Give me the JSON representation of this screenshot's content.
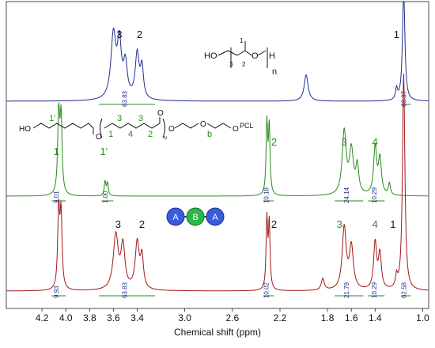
{
  "chart_data": {
    "type": "line",
    "xlabel": "Chemical shift (ppm)",
    "xlim": [
      4.5,
      0.95
    ],
    "x_ticks": [
      "4.2",
      "4.0",
      "3.8",
      "3.6",
      "3.4",
      "3.0",
      "2.6",
      "2.2",
      "1.8",
      "1.6",
      "1.4",
      "1.0"
    ],
    "grid": false,
    "series": [
      {
        "color": "#1f2f8f",
        "peaks": [
          {
            "x": 3.6,
            "height": 0.85,
            "width": 0.025
          },
          {
            "x": 3.55,
            "height": 0.7,
            "width": 0.02
          },
          {
            "x": 3.5,
            "height": 0.45,
            "width": 0.02
          },
          {
            "x": 3.4,
            "height": 0.6,
            "width": 0.02
          },
          {
            "x": 3.36,
            "height": 0.4,
            "width": 0.015
          },
          {
            "x": 1.98,
            "height": 0.35,
            "width": 0.02
          },
          {
            "x": 1.22,
            "height": 0.15,
            "width": 0.01
          },
          {
            "x": 1.16,
            "height": 1.5,
            "width": 0.012
          }
        ],
        "peak_labels": [
          {
            "text": "3",
            "x": 3.55
          },
          {
            "text": "2",
            "x": 3.38
          },
          {
            "text": "1",
            "x": 1.22
          }
        ],
        "integrals": [
          {
            "from": 3.72,
            "to": 3.25,
            "value": "63.83"
          },
          {
            "from": 1.18,
            "to": 1.1,
            "value": "63.37"
          }
        ]
      },
      {
        "color": "#2a8a1c",
        "peaks": [
          {
            "x": 4.06,
            "height": 1.0,
            "width": 0.01
          },
          {
            "x": 4.04,
            "height": 0.95,
            "width": 0.01
          },
          {
            "x": 3.67,
            "height": 0.18,
            "width": 0.008
          },
          {
            "x": 3.65,
            "height": 0.16,
            "width": 0.008
          },
          {
            "x": 2.31,
            "height": 0.9,
            "width": 0.008
          },
          {
            "x": 2.29,
            "height": 0.85,
            "width": 0.008
          },
          {
            "x": 1.66,
            "height": 0.8,
            "width": 0.02
          },
          {
            "x": 1.6,
            "height": 0.55,
            "width": 0.02
          },
          {
            "x": 1.55,
            "height": 0.35,
            "width": 0.015
          },
          {
            "x": 1.4,
            "height": 0.6,
            "width": 0.015
          },
          {
            "x": 1.36,
            "height": 0.45,
            "width": 0.015
          },
          {
            "x": 1.28,
            "height": 0.15,
            "width": 0.01
          }
        ],
        "peak_labels": [
          {
            "text": "1",
            "x": 4.08
          },
          {
            "text": "1'",
            "x": 3.68
          },
          {
            "text": "2",
            "x": 2.25
          },
          {
            "text": "3",
            "x": 1.66
          },
          {
            "text": "4",
            "x": 1.4
          }
        ],
        "integrals": [
          {
            "from": 4.12,
            "to": 4.0,
            "value": "9.01"
          },
          {
            "from": 3.7,
            "to": 3.6,
            "value": "1.00"
          },
          {
            "from": 2.34,
            "to": 2.25,
            "value": "10.18"
          },
          {
            "from": 1.74,
            "to": 1.5,
            "value": "24.14"
          },
          {
            "from": 1.46,
            "to": 1.32,
            "value": "10.29"
          }
        ]
      },
      {
        "color": "#a01818",
        "peaks": [
          {
            "x": 4.06,
            "height": 1.0,
            "width": 0.01
          },
          {
            "x": 4.04,
            "height": 0.95,
            "width": 0.01
          },
          {
            "x": 3.58,
            "height": 0.7,
            "width": 0.025
          },
          {
            "x": 3.52,
            "height": 0.55,
            "width": 0.02
          },
          {
            "x": 3.4,
            "height": 0.6,
            "width": 0.02
          },
          {
            "x": 3.36,
            "height": 0.4,
            "width": 0.015
          },
          {
            "x": 2.31,
            "height": 0.9,
            "width": 0.008
          },
          {
            "x": 2.29,
            "height": 0.85,
            "width": 0.008
          },
          {
            "x": 1.84,
            "height": 0.15,
            "width": 0.015
          },
          {
            "x": 1.66,
            "height": 0.8,
            "width": 0.02
          },
          {
            "x": 1.6,
            "height": 0.55,
            "width": 0.02
          },
          {
            "x": 1.4,
            "height": 0.6,
            "width": 0.015
          },
          {
            "x": 1.36,
            "height": 0.45,
            "width": 0.015
          },
          {
            "x": 1.22,
            "height": 0.15,
            "width": 0.01
          },
          {
            "x": 1.16,
            "height": 2.8,
            "width": 0.012
          }
        ],
        "peak_labels": [
          {
            "text": "3",
            "x": 3.56
          },
          {
            "text": "2",
            "x": 3.36
          },
          {
            "text": "2",
            "x": 2.25
          },
          {
            "text": "3",
            "x": 1.7
          },
          {
            "text": "4",
            "x": 1.4
          },
          {
            "text": "1",
            "x": 1.25
          }
        ],
        "integrals": [
          {
            "from": 4.12,
            "to": 4.0,
            "value": "9.93"
          },
          {
            "from": 3.72,
            "to": 3.25,
            "value": "63.83"
          },
          {
            "from": 2.34,
            "to": 2.25,
            "value": "10.02"
          },
          {
            "from": 1.74,
            "to": 1.5,
            "value": "21.79"
          },
          {
            "from": 1.46,
            "to": 1.32,
            "value": "10.29"
          },
          {
            "from": 1.18,
            "to": 1.1,
            "value": "62.58"
          }
        ]
      }
    ]
  },
  "structures": {
    "ppg": {
      "ho": "HO",
      "h": "H",
      "n": "n",
      "c1": "1",
      "c2": "2",
      "c3": "3",
      "o": "O"
    },
    "pcl": {
      "ho": "HO",
      "o": "O",
      "u": "u",
      "pcl_end": "PCL",
      "labels": [
        "1'",
        "1",
        "3",
        "3",
        "4",
        "2",
        "b"
      ]
    },
    "block": {
      "a1": "A",
      "b": "B",
      "a2": "A",
      "a_color": "#3a5bdc",
      "b_color": "#2db84a"
    }
  }
}
